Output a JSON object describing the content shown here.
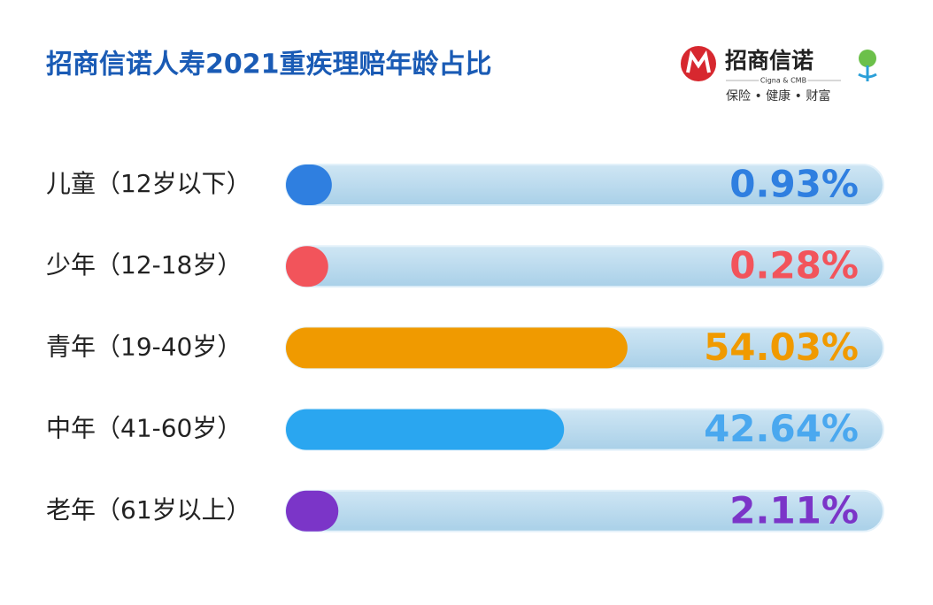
{
  "chart_data": {
    "type": "bar",
    "title": "招商信诺人寿2021重疾理赔年龄占比",
    "categories": [
      "儿童（12岁以下）",
      "少年（12-18岁）",
      "青年（19-40岁）",
      "中年（41-60岁）",
      "老年（61岁以上）"
    ],
    "values": [
      0.93,
      0.28,
      54.03,
      42.64,
      2.11
    ],
    "value_labels": [
      "0.93%",
      "0.28%",
      "54.03%",
      "42.64%",
      "2.11%"
    ],
    "colors": [
      "#2f7fe0",
      "#f2545b",
      "#f09a00",
      "#2aa6f0",
      "#7b35c8"
    ],
    "label_colors": [
      "#2f7fe0",
      "#f2545b",
      "#f09a00",
      "#4aa8ef",
      "#7b35c8"
    ],
    "xlim": [
      0,
      100
    ]
  },
  "logo": {
    "name": "招商信诺",
    "english": "Cigna & CMB",
    "slogan": "保险 • 健康 • 财富"
  }
}
